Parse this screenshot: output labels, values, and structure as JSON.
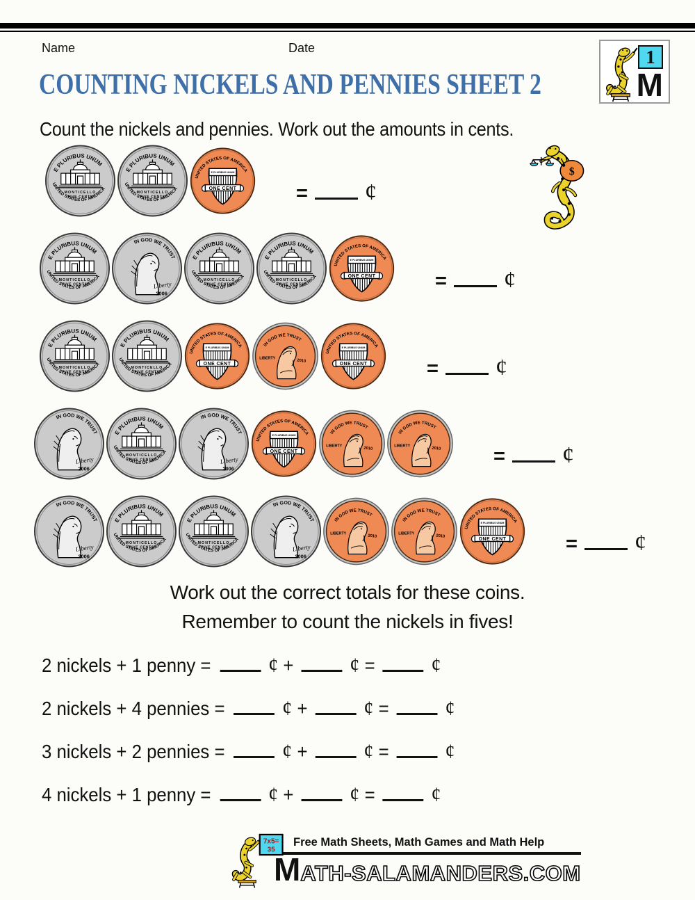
{
  "page": {
    "name_label": "Name",
    "date_label": "Date",
    "title": "COUNTING NICKELS AND PENNIES SHEET 2",
    "instruction": "Count the nickels and pennies. Work out the amounts in cents.",
    "middle_text_1": "Work out the correct totals for these coins.",
    "middle_text_2": "Remember to count the nickels in fives!"
  },
  "colors": {
    "title_blue": "#3f6fa8",
    "nickel_gray": "#cbcbcb",
    "penny_orange": "#ef8a55",
    "penny_face": "#f6c9a2",
    "board_cyan": "#4fd8ef",
    "salamander_yellow": "#ecd32b",
    "bag_orange": "#ef8a3c"
  },
  "coins": {
    "nickel_reverse": {
      "top_text": "E PLURIBUS UNUM",
      "name": "MONTICELLO",
      "denom": "FIVE CENTS",
      "bottom_text": "UNITED STATES OF AMERICA"
    },
    "nickel_obverse": {
      "motto": "IN GOD WE TRUST",
      "liberty": "Liberty",
      "year": "2006"
    },
    "penny_reverse": {
      "top_text": "UNITED STATES OF AMERICA",
      "banner": "E PLURIBUS UNUM",
      "denom": "ONE CENT"
    },
    "penny_obverse": {
      "motto": "IN GOD WE TRUST",
      "liberty": "LIBERTY",
      "year": "2010"
    }
  },
  "coin_rows": [
    {
      "coins": [
        "nickel_reverse",
        "nickel_reverse",
        "penny_reverse"
      ]
    },
    {
      "coins": [
        "nickel_reverse",
        "nickel_obverse",
        "nickel_reverse",
        "nickel_reverse",
        "penny_reverse"
      ]
    },
    {
      "coins": [
        "nickel_reverse",
        "nickel_reverse",
        "penny_reverse",
        "penny_obverse",
        "penny_reverse"
      ]
    },
    {
      "coins": [
        "nickel_obverse",
        "nickel_reverse",
        "nickel_obverse",
        "penny_reverse",
        "penny_obverse",
        "penny_obverse"
      ]
    },
    {
      "coins": [
        "nickel_obverse",
        "nickel_reverse",
        "nickel_reverse",
        "nickel_obverse",
        "penny_obverse",
        "penny_obverse",
        "penny_reverse"
      ]
    }
  ],
  "answer": {
    "equals": "=",
    "cent": "¢"
  },
  "symbols": {
    "cent": "¢",
    "plus": "+",
    "equals": "="
  },
  "equations": [
    {
      "label": "2 nickels + 1 penny ="
    },
    {
      "label": "2 nickels + 4 pennies ="
    },
    {
      "label": "3 nickels + 2 pennies ="
    },
    {
      "label": "4 nickels + 1 penny ="
    }
  ],
  "mascots": {
    "money_bag_symbol": "$",
    "board_line1": "7x5=",
    "board_line2": "35"
  },
  "logo_badge": {
    "number": "1",
    "letter": "M"
  },
  "footer": {
    "tagline": "Free Math Sheets, Math Games and Math Help",
    "site_m": "M",
    "site_rest": "ATH-SALAMANDERS.COM"
  }
}
